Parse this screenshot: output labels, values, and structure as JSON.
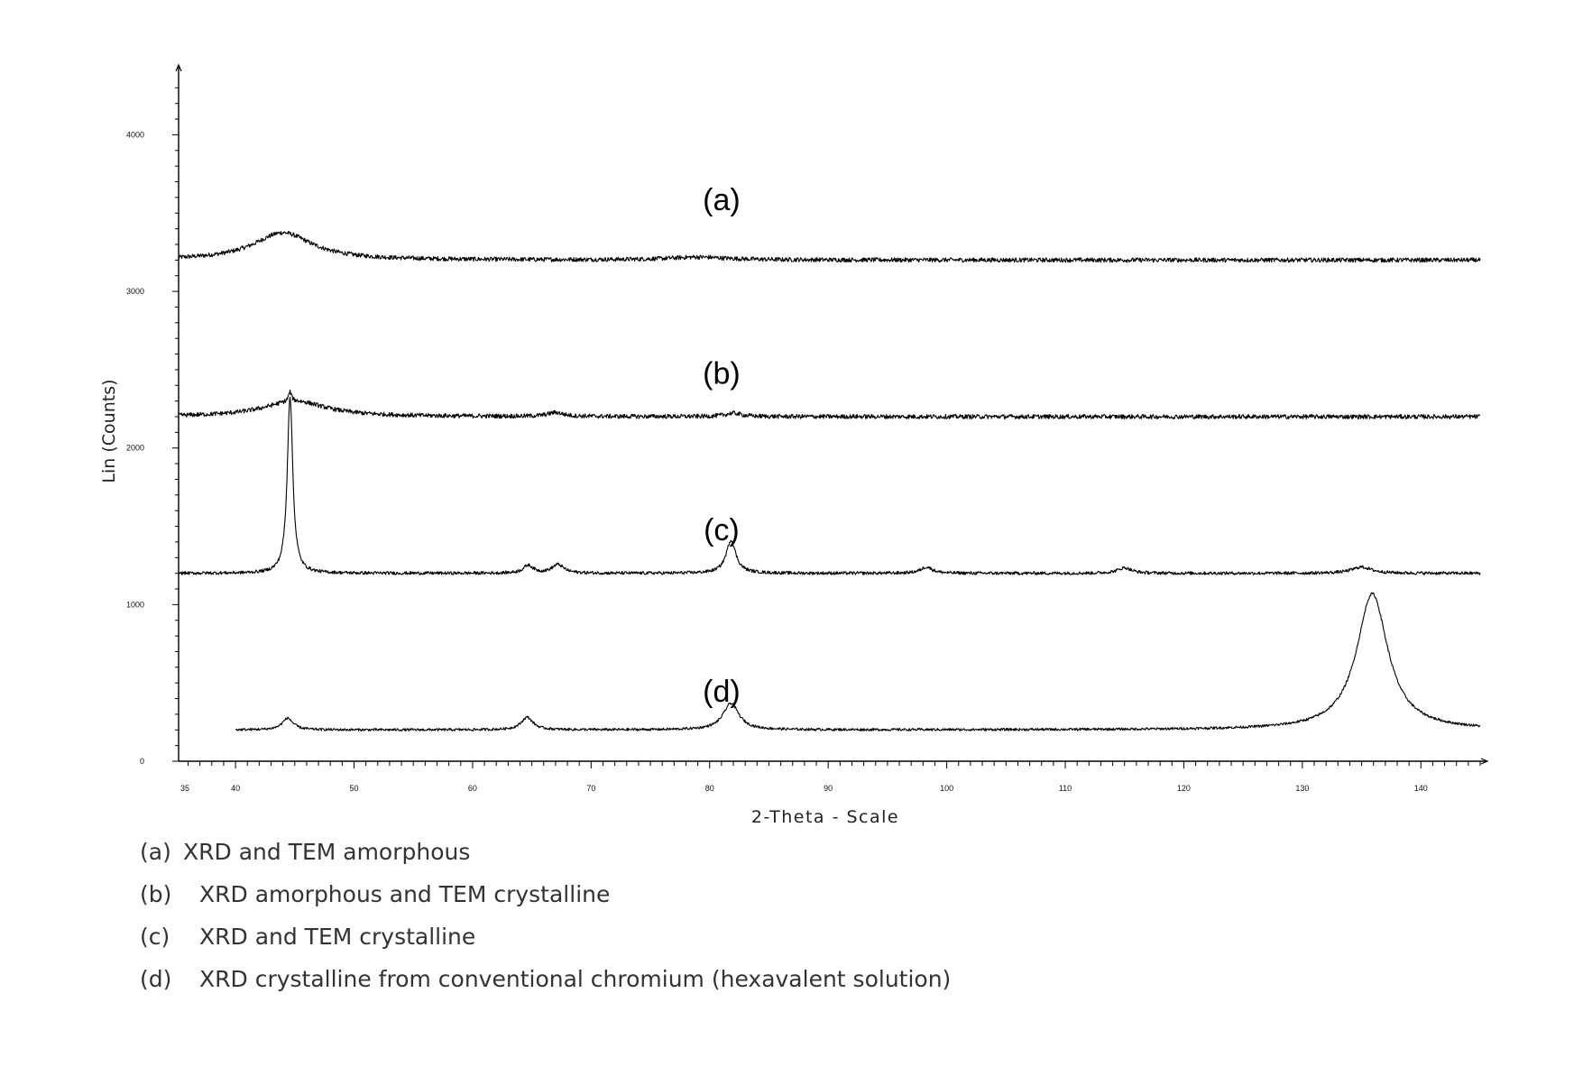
{
  "chart_data": {
    "type": "line",
    "xlabel": "2-Theta - Scale",
    "ylabel": "Lin (Counts)",
    "xlim": [
      35.2,
      145
    ],
    "ylim": [
      0,
      4400
    ],
    "x_ticks": [
      {
        "v": 35.2,
        "label": "35"
      },
      {
        "v": 40,
        "label": "40"
      },
      {
        "v": 50,
        "label": "50"
      },
      {
        "v": 60,
        "label": "60"
      },
      {
        "v": 70,
        "label": "70"
      },
      {
        "v": 80,
        "label": "80"
      },
      {
        "v": 90,
        "label": "90"
      },
      {
        "v": 100,
        "label": "100"
      },
      {
        "v": 110,
        "label": "110"
      },
      {
        "v": 120,
        "label": "120"
      },
      {
        "v": 130,
        "label": "130"
      },
      {
        "v": 140,
        "label": "140"
      }
    ],
    "y_ticks": [
      {
        "v": 0,
        "label": "0"
      },
      {
        "v": 1000,
        "label": "1000"
      },
      {
        "v": 2000,
        "label": "2000"
      },
      {
        "v": 3000,
        "label": "3000"
      },
      {
        "v": 4000,
        "label": "4000"
      }
    ],
    "grid": false,
    "legend_position": "below",
    "series": [
      {
        "name": "(a)",
        "x_range": [
          35.2,
          145
        ],
        "baseline": 3200,
        "noise": 14,
        "peaks": [
          {
            "x": 44.0,
            "height": 175,
            "width": 3.0
          },
          {
            "x": 79.0,
            "height": 18,
            "width": 3.0
          }
        ]
      },
      {
        "name": "(b)",
        "x_range": [
          35.2,
          145
        ],
        "baseline": 2200,
        "noise": 14,
        "peaks": [
          {
            "x": 45.0,
            "height": 100,
            "width": 3.2
          },
          {
            "x": 67.0,
            "height": 25,
            "width": 0.8
          },
          {
            "x": 82.0,
            "height": 22,
            "width": 0.8
          },
          {
            "x": 44.6,
            "height": 60,
            "width": 0.15
          }
        ]
      },
      {
        "name": "(c)",
        "x_range": [
          35.2,
          145
        ],
        "baseline": 1200,
        "noise": 10,
        "peaks": [
          {
            "x": 44.6,
            "height": 1130,
            "width": 0.28
          },
          {
            "x": 64.7,
            "height": 50,
            "width": 0.5
          },
          {
            "x": 67.2,
            "height": 55,
            "width": 0.6
          },
          {
            "x": 81.8,
            "height": 210,
            "width": 0.5
          },
          {
            "x": 98.3,
            "height": 40,
            "width": 0.6
          },
          {
            "x": 115.0,
            "height": 35,
            "width": 0.7
          },
          {
            "x": 135.0,
            "height": 40,
            "width": 1.0
          }
        ]
      },
      {
        "name": "(d)",
        "x_range": [
          40,
          145
        ],
        "baseline": 200,
        "noise": 8,
        "peaks": [
          {
            "x": 44.4,
            "height": 75,
            "width": 0.55
          },
          {
            "x": 64.6,
            "height": 80,
            "width": 0.6
          },
          {
            "x": 81.8,
            "height": 170,
            "width": 0.8
          },
          {
            "x": 135.9,
            "height": 870,
            "width": 1.6
          }
        ]
      }
    ],
    "annotations": [
      {
        "text": "(a)",
        "x": 81.0,
        "y": 3520
      },
      {
        "text": "(b)",
        "x": 81.0,
        "y": 2410
      },
      {
        "text": "(c)",
        "x": 81.0,
        "y": 1410
      },
      {
        "text": "(d)",
        "x": 81.0,
        "y": 380
      }
    ]
  },
  "legend": [
    {
      "tag": "(a)",
      "text": "XRD and TEM amorphous"
    },
    {
      "tag": "(b)",
      "text": "XRD amorphous and TEM crystalline"
    },
    {
      "tag": "(c)",
      "text": "XRD and TEM crystalline"
    },
    {
      "tag": "(d)",
      "text": "XRD crystalline from conventional chromium (hexavalent solution)"
    }
  ]
}
